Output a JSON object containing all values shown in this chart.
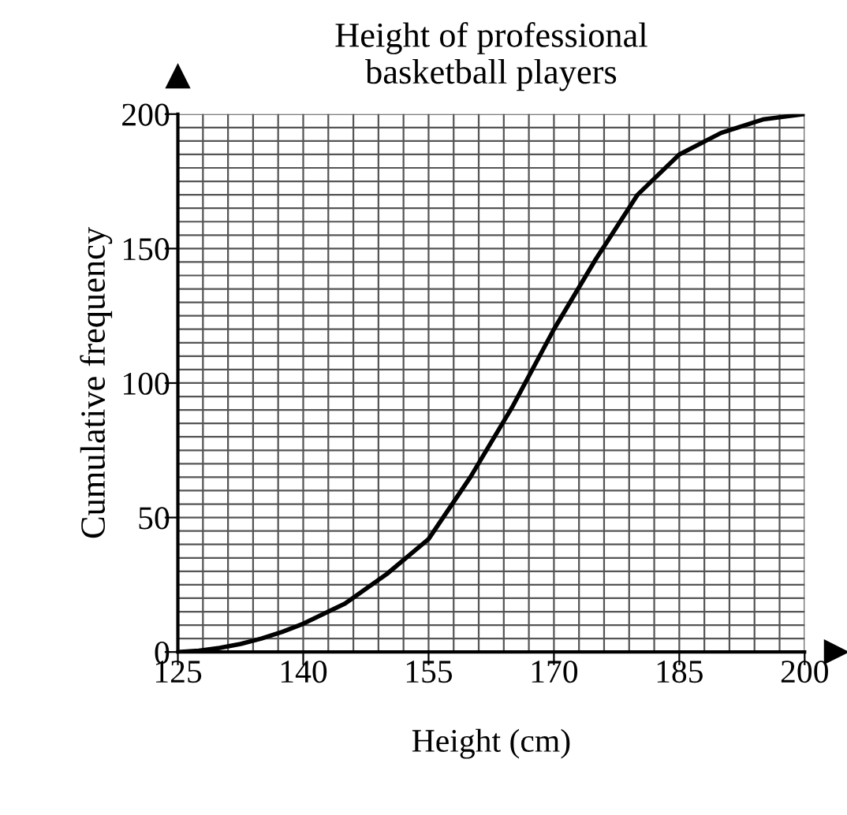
{
  "chart_data": {
    "type": "line",
    "title": "Height of professional\nbasketball players",
    "xlabel": "Height (cm)",
    "ylabel": "Cumulative frequency",
    "x": [
      125,
      127.5,
      130,
      132.5,
      135,
      137.5,
      140,
      145,
      150,
      155,
      160,
      165,
      170,
      175,
      180,
      185,
      190,
      195,
      200
    ],
    "series": [
      {
        "color": "#000000",
        "values": [
          0,
          0.5,
          1.5,
          3,
          5,
          7.5,
          10.5,
          18,
          29,
          42,
          65,
          91,
          120,
          146,
          170,
          185,
          193,
          198,
          200
        ]
      }
    ],
    "xlim": [
      125,
      200
    ],
    "ylim": [
      0,
      200
    ],
    "xticks": [
      125,
      {
        "value": 128,
        "label": null
      },
      {
        "value": 131,
        "label": null
      },
      {
        "value": 134,
        "label": null
      },
      {
        "value": 137,
        "label": null
      },
      140,
      {
        "value": 143,
        "label": null
      },
      {
        "value": 146,
        "label": null
      },
      {
        "value": 149,
        "label": null
      },
      {
        "value": 152,
        "label": null
      },
      155,
      {
        "value": 158,
        "label": null
      },
      {
        "value": 161,
        "label": null
      },
      {
        "value": 164,
        "label": null
      },
      {
        "value": 167,
        "label": null
      },
      170,
      {
        "value": 173,
        "label": null
      },
      {
        "value": 176,
        "label": null
      },
      {
        "value": 179,
        "label": null
      },
      {
        "value": 182,
        "label": null
      },
      185,
      {
        "value": 188,
        "label": null
      },
      {
        "value": 191,
        "label": null
      },
      {
        "value": 194,
        "label": null
      },
      {
        "value": 197,
        "label": null
      },
      200
    ],
    "yticks": [
      0,
      {
        "value": 5,
        "label": null
      },
      {
        "value": 10,
        "label": null
      },
      {
        "value": 15,
        "label": null
      },
      {
        "value": 20,
        "label": null
      },
      {
        "value": 25,
        "label": null
      },
      {
        "value": 30,
        "label": null
      },
      {
        "value": 35,
        "label": null
      },
      {
        "value": 40,
        "label": null
      },
      {
        "value": 45,
        "label": null
      },
      50,
      {
        "value": 55,
        "label": null
      },
      {
        "value": 60,
        "label": null
      },
      {
        "value": 65,
        "label": null
      },
      {
        "value": 70,
        "label": null
      },
      {
        "value": 75,
        "label": null
      },
      {
        "value": 80,
        "label": null
      },
      {
        "value": 85,
        "label": null
      },
      {
        "value": 90,
        "label": null
      },
      {
        "value": 95,
        "label": null
      },
      100,
      {
        "value": 105,
        "label": null
      },
      {
        "value": 110,
        "label": null
      },
      {
        "value": 115,
        "label": null
      },
      {
        "value": 120,
        "label": null
      },
      {
        "value": 125,
        "label": null
      },
      {
        "value": 130,
        "label": null
      },
      {
        "value": 135,
        "label": null
      },
      {
        "value": 140,
        "label": null
      },
      {
        "value": 145,
        "label": null
      },
      150,
      {
        "value": 155,
        "label": null
      },
      {
        "value": 160,
        "label": null
      },
      {
        "value": 165,
        "label": null
      },
      {
        "value": 170,
        "label": null
      },
      {
        "value": 175,
        "label": null
      },
      {
        "value": 180,
        "label": null
      },
      {
        "value": 185,
        "label": null
      },
      {
        "value": 190,
        "label": null
      },
      {
        "value": 195,
        "label": null
      },
      200
    ],
    "grid": true,
    "line_style": "solid",
    "marker": "none",
    "legend": false
  }
}
